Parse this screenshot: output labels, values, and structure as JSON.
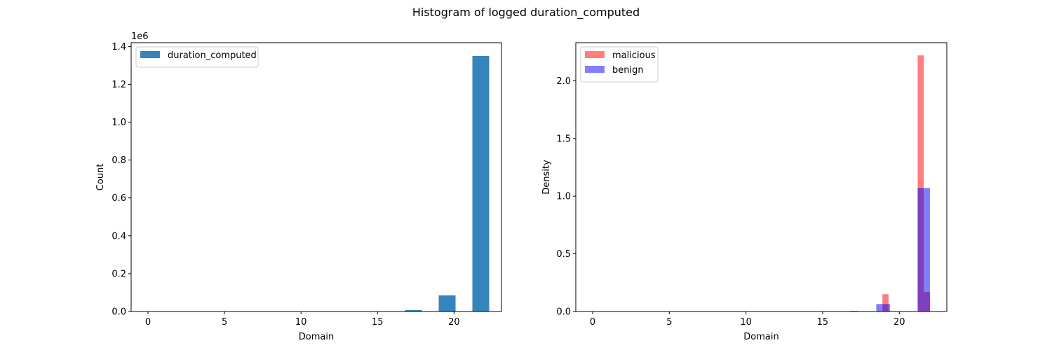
{
  "title": "Histogram of logged duration_computed",
  "chart_data": [
    {
      "type": "bar",
      "xlabel": "Domain",
      "ylabel": "Count",
      "offset_text": "1e6",
      "xlim": [
        -1.1,
        23.1
      ],
      "ylim": [
        0,
        1.42
      ],
      "xticks": [
        0,
        5,
        10,
        15,
        20
      ],
      "yticks": [
        0.0,
        0.2,
        0.4,
        0.6,
        0.8,
        1.0,
        1.2,
        1.4
      ],
      "series": [
        {
          "name": "duration_computed",
          "color": "#1f77b4",
          "opacity": 0.9,
          "bins": [
            {
              "x0": 16.8,
              "x1": 17.9,
              "value": 0.008
            },
            {
              "x0": 19.0,
              "x1": 20.1,
              "value": 0.085
            },
            {
              "x0": 21.2,
              "x1": 22.3,
              "value": 1.35
            }
          ]
        }
      ],
      "legend": "top-left"
    },
    {
      "type": "bar",
      "xlabel": "Domain",
      "ylabel": "Density",
      "xlim": [
        -1.1,
        23.1
      ],
      "ylim": [
        0,
        2.33
      ],
      "xticks": [
        0,
        5,
        10,
        15,
        20
      ],
      "yticks": [
        0.0,
        0.5,
        1.0,
        1.5,
        2.0
      ],
      "series": [
        {
          "name": "malicious",
          "color": "#ff0000",
          "opacity": 0.5,
          "bins": [
            {
              "x0": 16.6,
              "x1": 17.0,
              "value": 0.004
            },
            {
              "x0": 18.9,
              "x1": 19.3,
              "value": 0.15
            },
            {
              "x0": 21.2,
              "x1": 21.6,
              "value": 2.22
            },
            {
              "x0": 21.6,
              "x1": 22.0,
              "value": 0.17
            }
          ]
        },
        {
          "name": "benign",
          "color": "#0000ff",
          "opacity": 0.5,
          "bins": [
            {
              "x0": 16.8,
              "x1": 17.3,
              "value": 0.006
            },
            {
              "x0": 18.5,
              "x1": 19.0,
              "value": 0.065
            },
            {
              "x0": 19.0,
              "x1": 19.4,
              "value": 0.065
            },
            {
              "x0": 21.2,
              "x1": 21.6,
              "value": 1.07
            },
            {
              "x0": 21.6,
              "x1": 22.0,
              "value": 1.07
            }
          ]
        }
      ],
      "legend": "top-left"
    }
  ]
}
